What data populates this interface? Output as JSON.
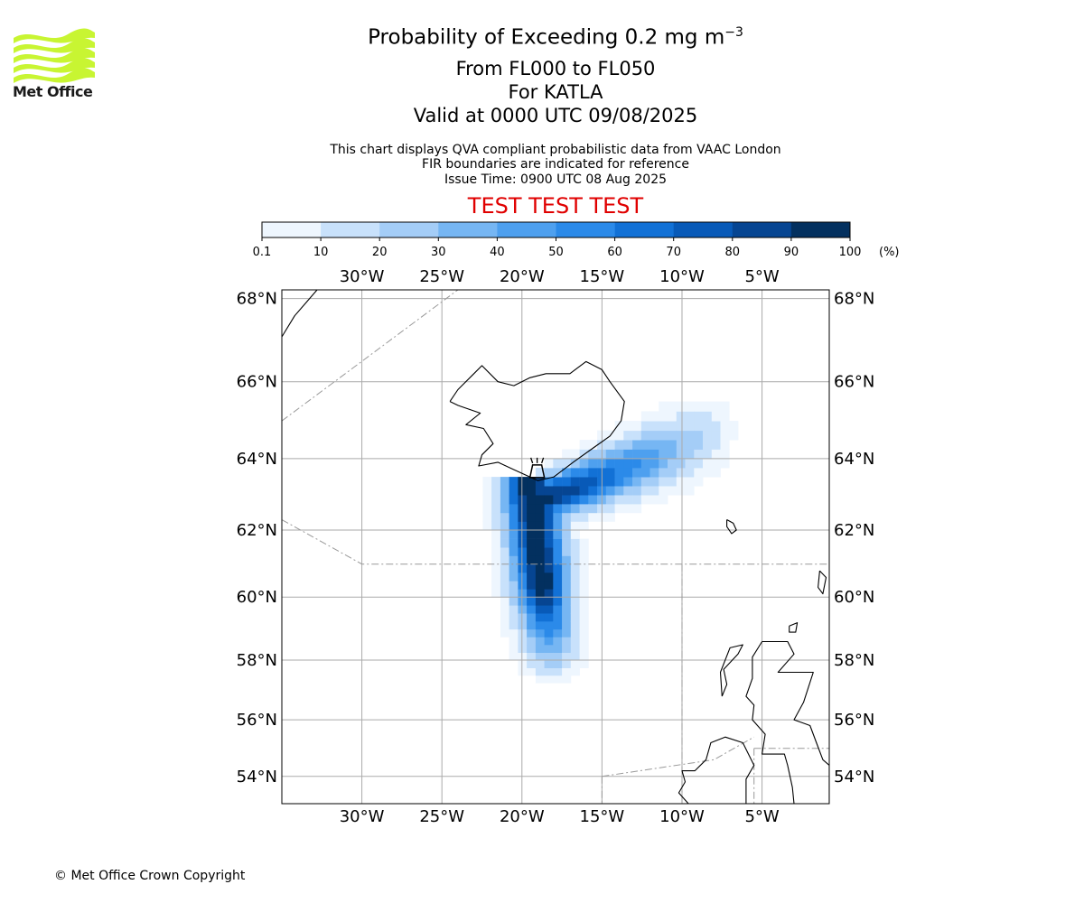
{
  "brand": {
    "name": "Met Office",
    "logo_color": "#c8f532",
    "copyright": "© Met Office Crown Copyright"
  },
  "header": {
    "title": "Probability of Exceeding 0.2 mg m",
    "title_superscript": "−3",
    "levels": "From FL000 to FL050",
    "volcano": "For KATLA",
    "valid": "Valid at 0000 UTC 09/08/2025",
    "note_1": "This chart displays QVA compliant probabilistic data from VAAC London",
    "note_2": "FIR boundaries are indicated for reference",
    "issue_time": "Issue Time: 0900 UTC 08 Aug 2025",
    "test_banner": "TEST TEST TEST",
    "test_color": "#e00000"
  },
  "colorbar": {
    "unit_label": "(%)",
    "tick_labels": [
      "0.1",
      "10",
      "20",
      "30",
      "40",
      "50",
      "60",
      "70",
      "80",
      "90",
      "100"
    ],
    "colors": [
      "#eef6fe",
      "#c8e1fb",
      "#a4cdf7",
      "#76b6f3",
      "#4ea0ef",
      "#2b8ae9",
      "#1271d6",
      "#085ab8",
      "#064592",
      "#03305f"
    ]
  },
  "map": {
    "lon_labels": [
      "30°W",
      "25°W",
      "20°W",
      "15°W",
      "10°W",
      "5°W"
    ],
    "lon_values": [
      -30,
      -25,
      -20,
      -15,
      -10,
      -5
    ],
    "lat_labels": [
      "68°N",
      "66°N",
      "64°N",
      "62°N",
      "60°N",
      "58°N",
      "56°N",
      "54°N"
    ],
    "lat_values": [
      68,
      66,
      64,
      62,
      60,
      58,
      56,
      54
    ],
    "volcano_marker": "volcano-icon",
    "grid": true,
    "gridline_color": "#aaaaaa",
    "coastline_color": "#000000",
    "fir_boundary_color": "#999999"
  }
}
